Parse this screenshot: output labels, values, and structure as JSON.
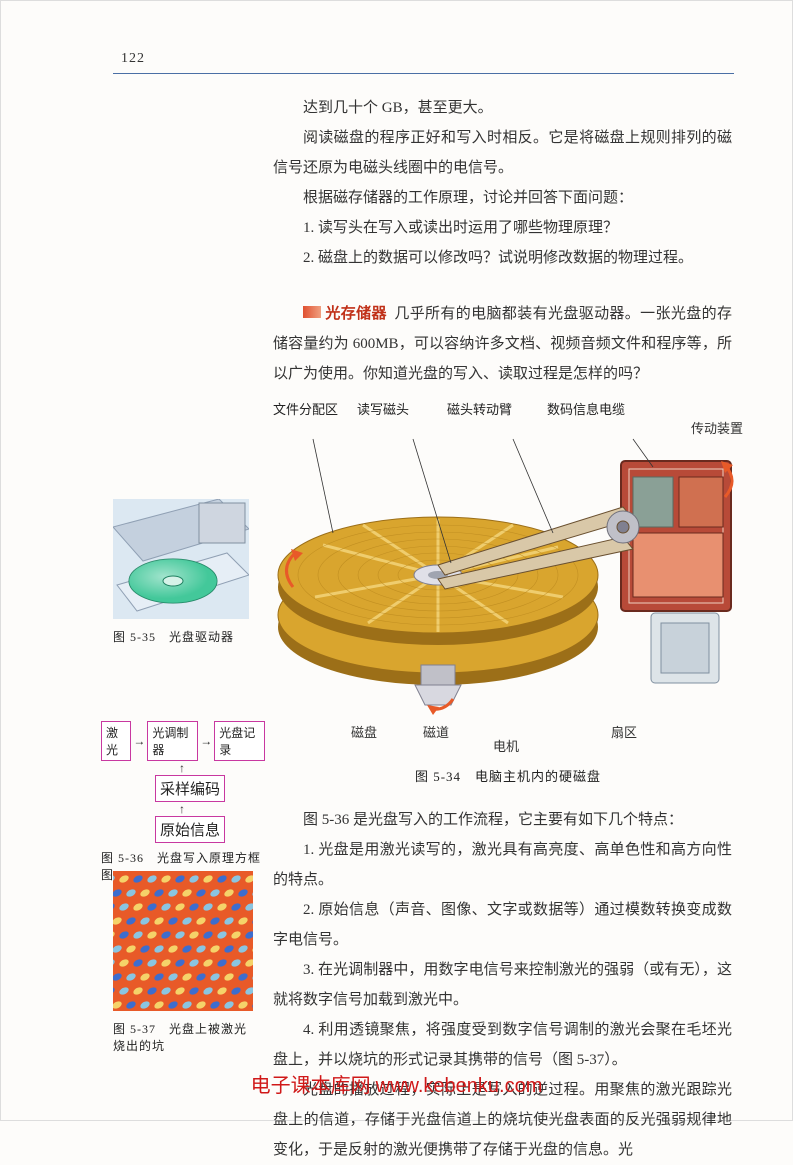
{
  "page_number": "122",
  "intro_paragraphs": [
    "达到几十个 GB，甚至更大。",
    "阅读磁盘的程序正好和写入时相反。它是将磁盘上规则排列的磁信号还原为电磁头线圈中的电信号。"
  ],
  "discuss_line": "根据磁存储器的工作原理，讨论并回答下面问题：",
  "questions": [
    "1. 读写头在写入或读出时运用了哪些物理原理？",
    "2. 磁盘上的数据可以修改吗？试说明修改数据的物理过程。"
  ],
  "section": {
    "head": "光存储器",
    "body": "几乎所有的电脑都装有光盘驱动器。一张光盘的存储容量约为 600MB，可以容纳许多文档、视频音频文件和程序等，所以广为使用。你知道光盘的写入、读取过程是怎样的吗？"
  },
  "fig534": {
    "labels_top": {
      "a": "文件分配区",
      "b": "读写磁头",
      "c": "磁头转动臂",
      "d": "数码信息电缆",
      "e": "传动装置"
    },
    "labels_bottom": {
      "disk": "磁盘",
      "track": "磁道",
      "sector": "扇区",
      "motor": "电机"
    },
    "caption": "图 5-34　电脑主机内的硬磁盘",
    "colors": {
      "platter": "#d9a52e",
      "platter_hi": "#f3d47a",
      "platter_edge": "#9c6f18",
      "arm": "#b08860",
      "mech_body": "#b84a38",
      "mech_frame": "#8aa096",
      "spindle": "#c0c0c8",
      "bg": "#ffffff"
    }
  },
  "fig535": {
    "caption": "图 5-35　光盘驱动器",
    "colors": {
      "tray": "#e6eef6",
      "disc": "#43c89a",
      "disc_hi": "#d6f2e8",
      "drive": "#cfd6e0"
    }
  },
  "fig536": {
    "boxes": {
      "laser": "激光",
      "modulator": "光调制器",
      "record": "光盘记录",
      "encode": "采样编码",
      "source": "原始信息"
    },
    "caption": "图 5-36　光盘写入原理方框图",
    "box_border": "#c838a0"
  },
  "fig537": {
    "caption": "图 5-37　光盘上被激光烧出的坑",
    "colors": {
      "bg": "#e85a28",
      "pit1": "#2a6fe0",
      "pit2": "#7fd0f5",
      "pit3": "#f6e070"
    }
  },
  "workflow_intro": "图 5-36 是光盘写入的工作流程，它主要有如下几个特点：",
  "points": [
    "1. 光盘是用激光读写的，激光具有高亮度、高单色性和高方向性的特点。",
    "2. 原始信息（声音、图像、文字或数据等）通过模数转换变成数字电信号。",
    "3. 在光调制器中，用数字电信号来控制激光的强弱（或有无），这就将数字信号加载到激光中。",
    "4. 利用透镜聚焦，将强度受到数字信号调制的激光会聚在毛坯光盘上，并以烧坑的形式记录其携带的信号（图 5-37）。"
  ],
  "play_paragraph": "光盘的播放过程，实际上是写入的逆过程。用聚焦的激光跟踪光盘上的信道，存储于光盘信道上的烧坑使光盘表面的反光强弱规律地变化，于是反射的激光便携带了存储于光盘的信息。光",
  "watermark": {
    "site_name": "电子课本库网",
    "url": "www.kebenku.com"
  }
}
